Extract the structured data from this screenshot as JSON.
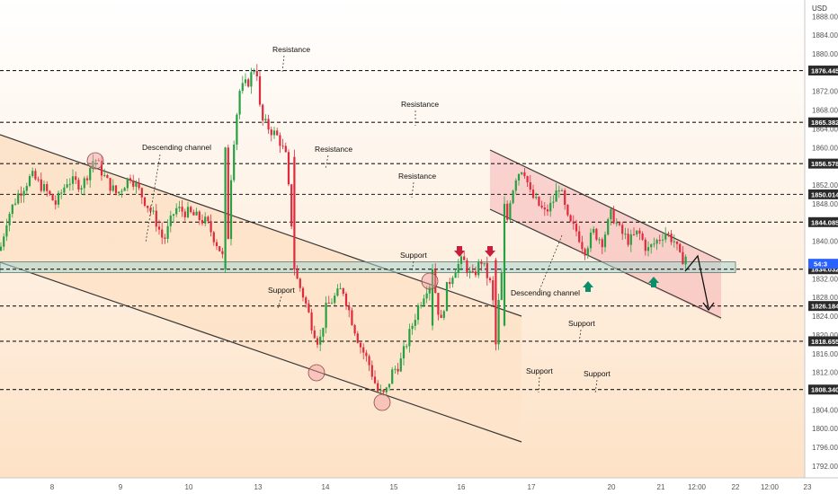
{
  "chart_data": {
    "type": "candlestick",
    "unit": "USD",
    "ylim": [
      1789.5,
      1891.5
    ],
    "y_ticks": [
      1792,
      1796,
      1800,
      1804,
      1808,
      1812,
      1816,
      1820,
      1824,
      1828,
      1832,
      1836,
      1840,
      1844,
      1848,
      1852,
      1856,
      1860,
      1864,
      1868,
      1872,
      1876,
      1880,
      1884,
      1888
    ],
    "x_ticks": [
      "8",
      "9",
      "10",
      "13",
      "14",
      "15",
      "16",
      "17",
      "20",
      "21",
      "12:00",
      "22",
      "12:00",
      "23"
    ],
    "levels": [
      {
        "value": 1876.445,
        "label": "1876.445"
      },
      {
        "value": 1865.382,
        "label": "1865.382"
      },
      {
        "value": 1856.578,
        "label": "1856.578"
      },
      {
        "value": 1850.014,
        "label": "1850.014"
      },
      {
        "value": 1844.085,
        "label": "1844.085"
      },
      {
        "value": 1834.032,
        "label": "1834.032"
      },
      {
        "value": 1826.184,
        "label": "1826.184"
      },
      {
        "value": 1818.655,
        "label": "1818.655"
      },
      {
        "value": 1808.34,
        "label": "1808.340"
      }
    ],
    "current_price": {
      "value": 1835.2,
      "label": "54:3"
    },
    "support_zone": [
      1833.3,
      1835.6
    ],
    "annotations": [
      "Resistance",
      "Resistance",
      "Resistance",
      "Resistance",
      "Descending channel",
      "Descending channel",
      "Support",
      "Support",
      "Support",
      "Support",
      "Support"
    ],
    "colors": {
      "up": "#26a042",
      "down": "#e0293b",
      "zone": "#a9d7cf",
      "channel_fill": "#f7c7a0",
      "right_channel_fill": "#f4a7ab",
      "arrow_red": "#c81e3c",
      "arrow_green": "#0a8f6a"
    },
    "grid": false
  }
}
